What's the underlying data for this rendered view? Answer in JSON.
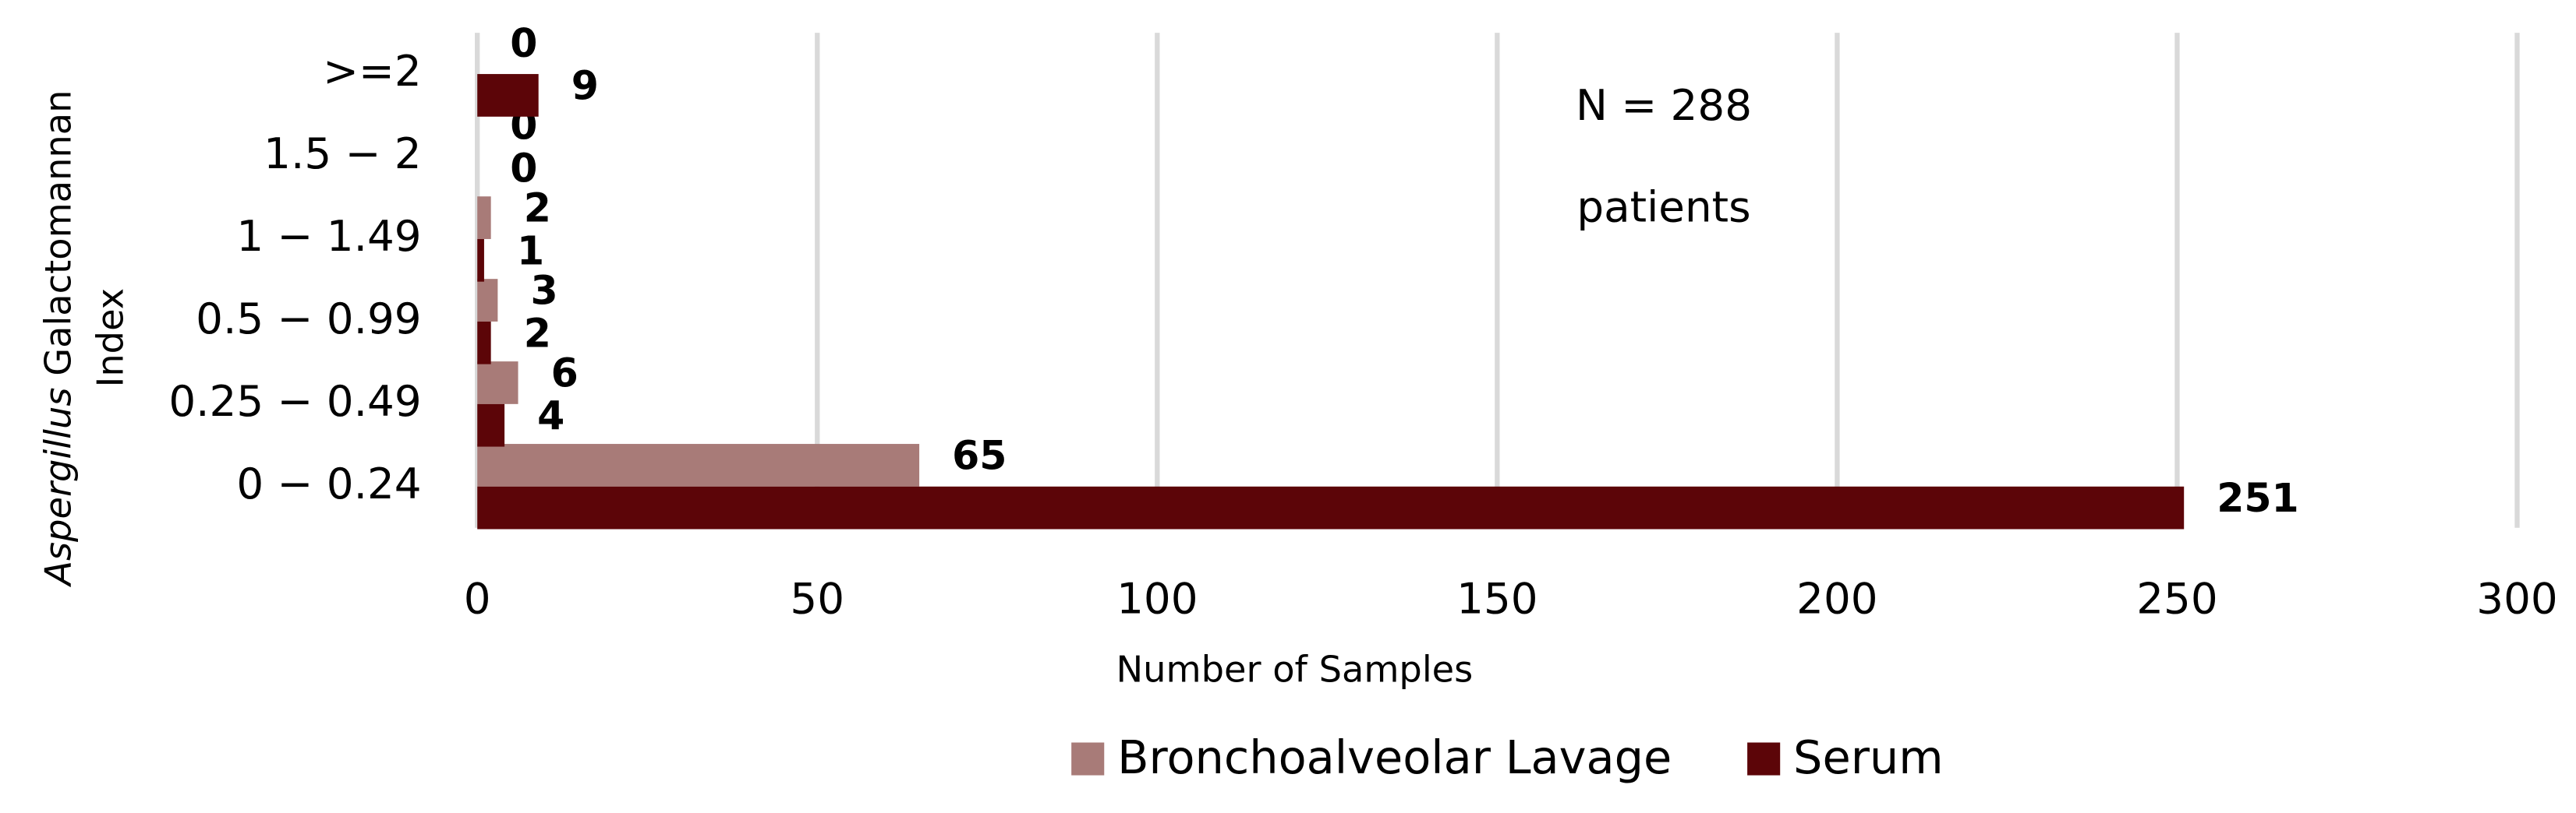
{
  "chart_data": {
    "type": "barh",
    "categories": [
      "0 − 0.24",
      "0.25 − 0.49",
      "0.5 − 0.99",
      "1 − 1.49",
      "1.5 − 2",
      ">=2"
    ],
    "series": [
      {
        "name": "Bronchoalveolar Lavage",
        "color": "#a87b78",
        "values": [
          65,
          6,
          3,
          2,
          0,
          0
        ]
      },
      {
        "name": "Serum",
        "color": "#5c0508",
        "values": [
          251,
          4,
          2,
          1,
          0,
          9
        ]
      }
    ],
    "xlim": [
      0,
      300
    ],
    "xticks": [
      0,
      50,
      100,
      150,
      200,
      250,
      300
    ],
    "grid": true,
    "x_label": "Number of Samples",
    "y_label": [
      "Aspergillus",
      "Galactomannan",
      "Index"
    ],
    "annotations": [
      "N = 288",
      "patients"
    ],
    "legend": "bottom"
  }
}
